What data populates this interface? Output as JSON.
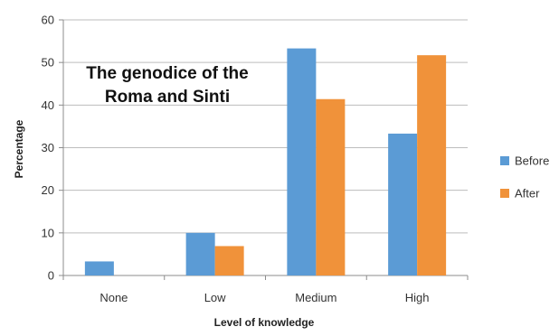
{
  "chart_data": {
    "type": "bar",
    "title_lines": [
      "The genodice of the",
      "Roma and Sinti"
    ],
    "xlabel": "Level of knowledge",
    "ylabel": "Percentage",
    "categories": [
      "None",
      "Low",
      "Medium",
      "High"
    ],
    "series": [
      {
        "name": "Before",
        "values": [
          3.3,
          10.0,
          53.3,
          33.3
        ],
        "color": "#5b9bd5"
      },
      {
        "name": "After",
        "values": [
          0,
          6.9,
          41.4,
          51.7
        ],
        "color": "#f0923a"
      }
    ],
    "ylim": [
      0,
      60
    ],
    "yticks": [
      0,
      10,
      20,
      30,
      40,
      50,
      60
    ],
    "grid": true,
    "legend_position": "right"
  }
}
